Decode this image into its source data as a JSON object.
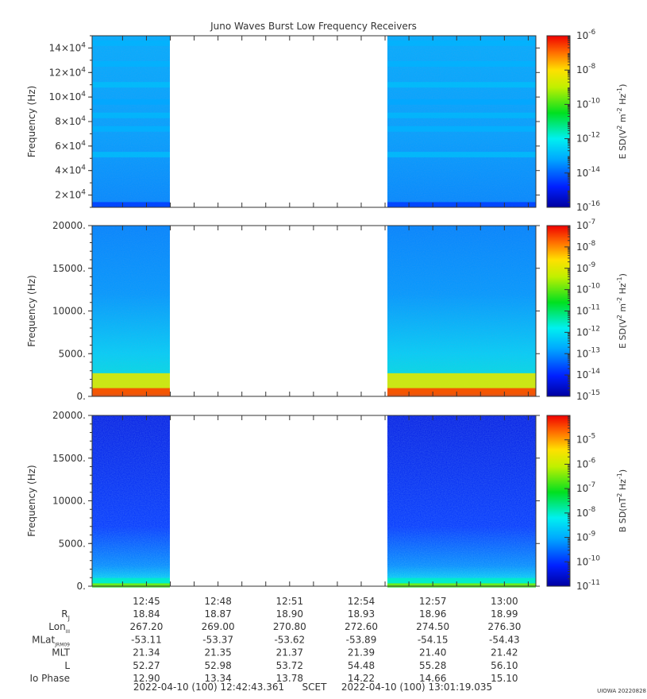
{
  "title": "Juno Waves Burst Low Frequency Receivers",
  "credit": "UIOWA 20220828",
  "chart_data": [
    {
      "type": "heatmap",
      "panel": "E-field 1",
      "ylabel": "Frequency (Hz)",
      "ylim": [
        10000,
        150000
      ],
      "yticks": [
        20000,
        40000,
        60000,
        80000,
        100000,
        120000,
        140000
      ],
      "ytick_labels": [
        "2×10",
        "4×10",
        "6×10",
        "8×10",
        "10×10",
        "12×10",
        "14×10"
      ],
      "ytick_exponent": "4",
      "colorbar": {
        "label": "E SD(V",
        "label_parts": [
          "E SD(V",
          "2",
          " m",
          "-2",
          " Hz",
          "-1",
          ")"
        ],
        "scale": "log",
        "range_exponents": [
          -16,
          -6
        ],
        "tick_exponents": [
          "-16",
          "-14",
          "-12",
          "-10",
          "-8",
          "-6"
        ]
      },
      "data_gap_minutes": [
        12.76,
        12.95
      ],
      "bands_hz": [
        {
          "center": 144000,
          "level": -13.0
        },
        {
          "center": 127000,
          "level": -13.0
        },
        {
          "center": 110000,
          "level": -12.8
        },
        {
          "center": 96000,
          "level": -13.2
        },
        {
          "center": 85000,
          "level": -12.9
        },
        {
          "center": 74000,
          "level": -13.0
        },
        {
          "center": 53000,
          "level": -12.8
        },
        {
          "center": 12000,
          "level": -14.6
        }
      ]
    },
    {
      "type": "heatmap",
      "panel": "E-field 2",
      "ylabel": "Frequency (Hz)",
      "ylim": [
        0,
        20000
      ],
      "yticks": [
        0,
        5000,
        10000,
        15000,
        20000
      ],
      "ytick_labels": [
        "0.",
        "5000.",
        "10000.",
        "15000.",
        "20000."
      ],
      "colorbar": {
        "label": "E SD(V",
        "label_parts": [
          "E SD(V",
          "2",
          " m",
          "-2",
          " Hz",
          "-1",
          ")"
        ],
        "scale": "log",
        "range_exponents": [
          -15,
          -7
        ],
        "tick_exponents": [
          "-15",
          "-14",
          "-13",
          "-12",
          "-11",
          "-10",
          "-9",
          "-8",
          "-7"
        ]
      },
      "data_gap_minutes": [
        12.76,
        12.95
      ],
      "bands_hz": [
        {
          "center": 1500,
          "level": -9.0
        },
        {
          "center": 500,
          "level": -7.5
        }
      ]
    },
    {
      "type": "heatmap",
      "panel": "B-field",
      "ylabel": "Frequency (Hz)",
      "ylim": [
        0,
        20000
      ],
      "yticks": [
        0,
        5000,
        10000,
        15000,
        20000
      ],
      "ytick_labels": [
        "0.",
        "5000.",
        "10000.",
        "15000.",
        "20000."
      ],
      "colorbar": {
        "label": "B SD(nT",
        "label_parts": [
          "B SD(nT",
          "2",
          " Hz",
          "-1",
          ")"
        ],
        "scale": "log",
        "range_exponents": [
          -11,
          -4
        ],
        "tick_exponents": [
          "-11",
          "-10",
          "-9",
          "-8",
          "-7",
          "-6",
          "-5"
        ]
      },
      "data_gap_minutes": [
        12.76,
        12.95
      ],
      "bands_hz": [
        {
          "center": 400,
          "level": -8.0
        },
        {
          "center": 100,
          "level": -6.5
        }
      ]
    }
  ],
  "time_axis": {
    "tick_labels": [
      "12:45",
      "12:48",
      "12:51",
      "12:54",
      "12:57",
      "13:00"
    ],
    "start": "12:42:43.361",
    "end": "13:01:19.035"
  },
  "ephemeris": {
    "rows": [
      {
        "label": "R",
        "sub": "J",
        "values": [
          "18.84",
          "18.87",
          "18.90",
          "18.93",
          "18.96",
          "18.99"
        ]
      },
      {
        "label": "Lon",
        "sub": "III",
        "values": [
          "267.20",
          "269.00",
          "270.80",
          "272.60",
          "274.50",
          "276.30"
        ]
      },
      {
        "label": "MLat",
        "sub": "JRM09",
        "values": [
          "-53.11",
          "-53.37",
          "-53.62",
          "-53.89",
          "-54.15",
          "-54.43"
        ]
      },
      {
        "label": "MLT",
        "sub": "",
        "values": [
          "21.34",
          "21.35",
          "21.37",
          "21.39",
          "21.40",
          "21.42"
        ]
      },
      {
        "label": "L",
        "sub": "",
        "values": [
          "52.27",
          "52.98",
          "53.72",
          "54.48",
          "55.28",
          "56.10"
        ]
      },
      {
        "label": "Io Phase",
        "sub": "",
        "values": [
          "12.90",
          "13.34",
          "13.78",
          "14.22",
          "14.66",
          "15.10"
        ]
      }
    ]
  },
  "footer": {
    "start": "2022-04-10 (100) 12:42:43.361",
    "scet": "SCET",
    "end": "2022-04-10 (100) 13:01:19.035"
  }
}
